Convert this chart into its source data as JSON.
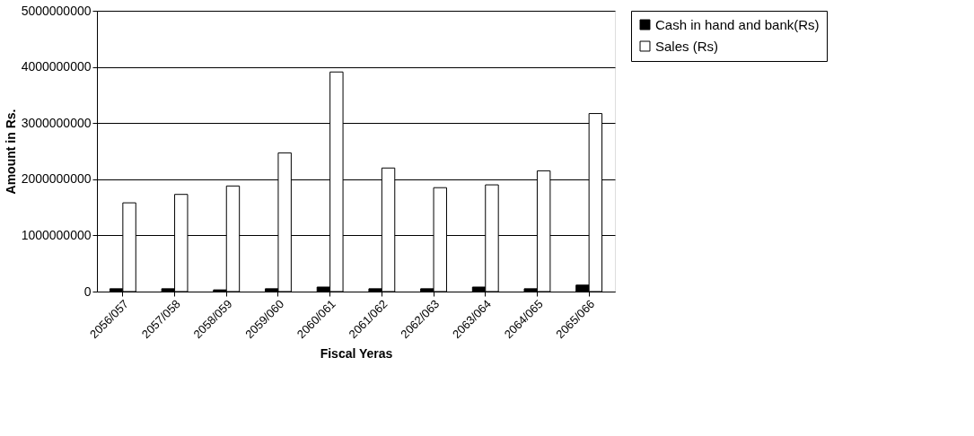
{
  "chart_data": {
    "type": "bar",
    "xlabel": "Fiscal Yeras",
    "ylabel": "Amount in Rs.",
    "categories": [
      "2056/057",
      "2057/058",
      "2058/059",
      "2059/060",
      "2060/061",
      "2061/062",
      "2062/063",
      "2063/064",
      "2064/065",
      "2065/066"
    ],
    "series": [
      {
        "name": "Cash in hand and bank(Rs)",
        "color": "#000000",
        "values": [
          50000000,
          50000000,
          30000000,
          50000000,
          80000000,
          50000000,
          50000000,
          80000000,
          50000000,
          115000000
        ]
      },
      {
        "name": "Sales (Rs)",
        "color": "#ffffff",
        "values": [
          1580000000,
          1730000000,
          1880000000,
          2470000000,
          3910000000,
          2200000000,
          1850000000,
          1900000000,
          2150000000,
          3170000000
        ]
      }
    ],
    "ylim": [
      0,
      5000000000
    ],
    "yticks": [
      0,
      1000000000,
      2000000000,
      3000000000,
      4000000000,
      5000000000
    ],
    "grid": "y",
    "legend": "right"
  }
}
